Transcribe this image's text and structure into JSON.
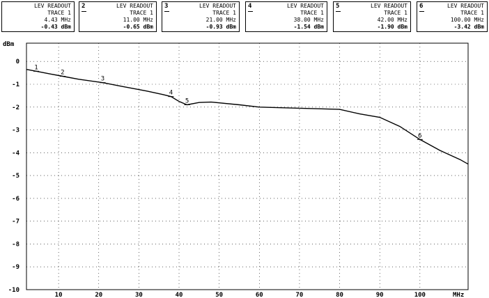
{
  "readouts": [
    {
      "marker": "",
      "title": "LEV READOUT",
      "trace": "TRACE 1",
      "freq": "4.43 MHz",
      "level": "-0.43 dBm"
    },
    {
      "marker": "2",
      "title": "LEV READOUT",
      "trace": "TRACE 1",
      "freq": "11.00 MHz",
      "level": "-0.65 dBm"
    },
    {
      "marker": "3",
      "title": "LEV READOUT",
      "trace": "TRACE 1",
      "freq": "21.00 MHz",
      "level": "-0.93 dBm"
    },
    {
      "marker": "4",
      "title": "LEV READOUT",
      "trace": "TRACE 1",
      "freq": "38.00 MHz",
      "level": "-1.54 dBm"
    },
    {
      "marker": "5",
      "title": "LEV READOUT",
      "trace": "TRACE 1",
      "freq": "42.00 MHz",
      "level": "-1.90 dBm"
    },
    {
      "marker": "6",
      "title": "LEV READOUT",
      "trace": "TRACE 1",
      "freq": "100.00 MHz",
      "level": "-3.42 dBm"
    }
  ],
  "chart_data": {
    "type": "line",
    "ylabel": "dBm",
    "xunit": "MHz",
    "xlim": [
      2,
      112
    ],
    "ylim": [
      -10,
      0.8
    ],
    "grid": true,
    "xticks": [
      10,
      20,
      30,
      40,
      50,
      60,
      70,
      80,
      90,
      100
    ],
    "yticks": [
      0,
      -1,
      -2,
      -3,
      -4,
      -5,
      -6,
      -7,
      -8,
      -9,
      -10
    ],
    "x": [
      2,
      4.43,
      8,
      11,
      15,
      21,
      26,
      32,
      36,
      38,
      40,
      42,
      45,
      48,
      55,
      60,
      70,
      80,
      85,
      90,
      95,
      100,
      105,
      110,
      112
    ],
    "values": [
      -0.35,
      -0.43,
      -0.55,
      -0.65,
      -0.78,
      -0.93,
      -1.1,
      -1.3,
      -1.45,
      -1.54,
      -1.75,
      -1.9,
      -1.8,
      -1.78,
      -1.9,
      -2.0,
      -2.05,
      -2.1,
      -2.3,
      -2.45,
      -2.85,
      -3.42,
      -3.9,
      -4.3,
      -4.5
    ],
    "markers": [
      {
        "label": "1",
        "x": 4.43,
        "y": -0.43
      },
      {
        "label": "2",
        "x": 11,
        "y": -0.65
      },
      {
        "label": "3",
        "x": 21,
        "y": -0.93
      },
      {
        "label": "4",
        "x": 38,
        "y": -1.54
      },
      {
        "label": "5",
        "x": 42,
        "y": -1.9
      },
      {
        "label": "6",
        "x": 100,
        "y": -3.42
      }
    ]
  }
}
